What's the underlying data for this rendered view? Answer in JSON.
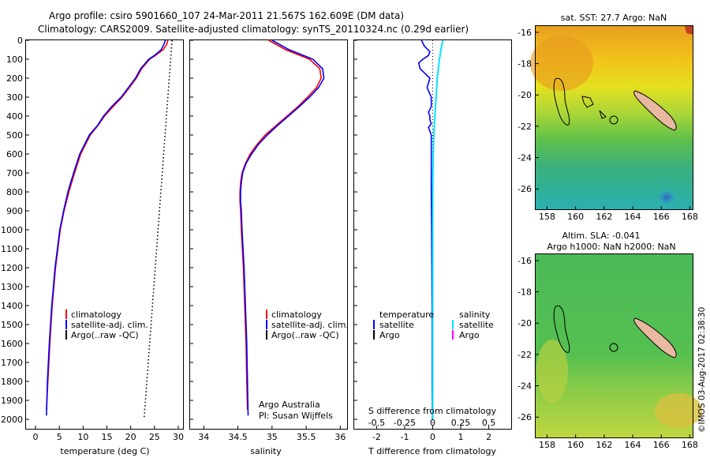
{
  "header": {
    "line1": "Argo profile: csiro 5901660_107 24-Mar-2011 21.567S 162.609E (DM data)",
    "line2": "Climatology: CARS2009. Satellite-adjusted climatology: synTS_20110324.nc (0.29d earlier)"
  },
  "colors": {
    "climatology": "#ff0000",
    "satellite": "#0000ff",
    "argo": "#000000",
    "sal_satellite": "#00e5ff",
    "sal_argo": "#ff00ff",
    "land": "#e8b9a0"
  },
  "chart_data": [
    {
      "id": "temperature",
      "type": "line",
      "xlabel": "temperature (deg C)",
      "ylabel": "",
      "xlim": [
        -2,
        31
      ],
      "ylim": [
        2050,
        0
      ],
      "xticks": [
        "0",
        "5",
        "10",
        "15",
        "20",
        "25",
        "30"
      ],
      "xtick_values": [
        0,
        5,
        10,
        15,
        20,
        25,
        30
      ],
      "yticks": [
        "0",
        "100",
        "200",
        "300",
        "400",
        "500",
        "600",
        "700",
        "800",
        "900",
        "1000",
        "1100",
        "1200",
        "1300",
        "1400",
        "1500",
        "1600",
        "1700",
        "1800",
        "1900",
        "2000"
      ],
      "ytick_values": [
        0,
        100,
        200,
        300,
        400,
        500,
        600,
        700,
        800,
        900,
        1000,
        1100,
        1200,
        1300,
        1400,
        1500,
        1600,
        1700,
        1800,
        1900,
        2000
      ],
      "legend": [
        "climatology",
        "satellite-adj. clim.",
        "Argo(..raw -QC)"
      ],
      "series": [
        {
          "name": "climatology",
          "depth": [
            0,
            20,
            50,
            80,
            100,
            150,
            200,
            250,
            300,
            350,
            400,
            450,
            500,
            600,
            700,
            800,
            900,
            1000,
            1200,
            1400,
            1600,
            1800,
            1950
          ],
          "values": [
            27.8,
            27.6,
            26.8,
            25.2,
            24.0,
            22.3,
            21.2,
            19.7,
            18.2,
            16.3,
            14.5,
            13.1,
            11.5,
            9.5,
            8.2,
            7.0,
            6.0,
            5.2,
            4.2,
            3.5,
            3.0,
            2.6,
            2.3
          ]
        },
        {
          "name": "satellite-adj. clim.",
          "depth": [
            0,
            20,
            50,
            80,
            100,
            150,
            200,
            250,
            300,
            350,
            400,
            450,
            500,
            600,
            700,
            800,
            900,
            1000,
            1200,
            1400,
            1600,
            1800,
            1980
          ],
          "values": [
            27.3,
            27.0,
            26.4,
            25.0,
            23.8,
            22.1,
            21.0,
            19.5,
            18.0,
            16.0,
            14.3,
            13.0,
            11.3,
            9.3,
            8.0,
            6.8,
            5.9,
            5.1,
            4.1,
            3.4,
            2.9,
            2.5,
            2.3
          ]
        },
        {
          "name": "Argo(..raw -QC)",
          "depth": [
            0,
            2000
          ],
          "values": [
            28.7,
            22.8
          ]
        }
      ]
    },
    {
      "id": "salinity",
      "type": "line",
      "xlabel": "salinity",
      "ylabel": "",
      "xlim": [
        33.8,
        36.1
      ],
      "ylim": [
        2050,
        0
      ],
      "xticks": [
        "34",
        "34.5",
        "35",
        "35.5",
        "36"
      ],
      "xtick_values": [
        34,
        34.5,
        35,
        35.5,
        36
      ],
      "legend": [
        "climatology",
        "satellite-adj. clim.",
        "Argo(..raw -QC)"
      ],
      "annotation": [
        "Argo Australia",
        "PI: Susan Wijffels"
      ],
      "series": [
        {
          "name": "climatology",
          "depth": [
            0,
            50,
            100,
            150,
            200,
            250,
            300,
            350,
            400,
            450,
            500,
            550,
            600,
            650,
            700,
            750,
            800,
            850,
            900,
            1000,
            1200,
            1400,
            1600,
            1800,
            1950
          ],
          "values": [
            34.95,
            35.2,
            35.55,
            35.7,
            35.72,
            35.65,
            35.52,
            35.38,
            35.22,
            35.06,
            34.9,
            34.78,
            34.68,
            34.61,
            34.56,
            34.54,
            34.53,
            34.53,
            34.54,
            34.55,
            34.58,
            34.6,
            34.62,
            34.63,
            34.64
          ]
        },
        {
          "name": "satellite-adj. clim.",
          "depth": [
            0,
            50,
            100,
            150,
            200,
            250,
            300,
            350,
            400,
            450,
            500,
            550,
            600,
            650,
            700,
            750,
            800,
            850,
            900,
            1000,
            1200,
            1400,
            1600,
            1800,
            1980
          ],
          "values": [
            35.0,
            35.25,
            35.6,
            35.74,
            35.76,
            35.68,
            35.55,
            35.4,
            35.24,
            35.08,
            34.93,
            34.8,
            34.7,
            34.62,
            34.57,
            34.55,
            34.54,
            34.54,
            34.55,
            34.56,
            34.59,
            34.61,
            34.63,
            34.64,
            34.65
          ]
        }
      ]
    },
    {
      "id": "difference",
      "type": "line",
      "xlabel": "T difference from climatology",
      "xlabel_top": "S difference from climatology",
      "xlim": [
        -2.8,
        2.8
      ],
      "ylim": [
        2050,
        0
      ],
      "xticks": [
        "-2",
        "-1",
        "0",
        "1",
        "2"
      ],
      "xtick_values": [
        -2,
        -1,
        0,
        1,
        2
      ],
      "sticks": [
        "-0.5",
        "-0.25",
        "0",
        "0.25",
        "0.5"
      ],
      "stick_values": [
        -0.5,
        -0.25,
        0,
        0.25,
        0.5
      ],
      "legend_temperature": {
        "title": "temperature",
        "items": [
          "satellite",
          "Argo"
        ]
      },
      "legend_salinity": {
        "title": "salinity",
        "items": [
          "satellite",
          "Argo"
        ]
      },
      "series": [
        {
          "name": "satellite",
          "group": "temperature",
          "depth": [
            0,
            30,
            60,
            80,
            100,
            120,
            150,
            200,
            250,
            300,
            350,
            380,
            400,
            420,
            440,
            460,
            500,
            600,
            700,
            800,
            1000,
            1200,
            1500,
            1800,
            2000
          ],
          "values": [
            -0.4,
            -0.3,
            -0.1,
            -0.15,
            -0.35,
            -0.5,
            -0.45,
            -0.1,
            -0.2,
            -0.05,
            -0.05,
            -0.15,
            -0.1,
            -0.1,
            -0.05,
            -0.15,
            -0.05,
            -0.05,
            -0.05,
            -0.05,
            -0.04,
            -0.03,
            -0.02,
            -0.02,
            -0.01
          ]
        },
        {
          "name": "satellite",
          "group": "salinity",
          "depth": [
            0,
            30,
            60,
            100,
            150,
            200,
            300,
            400,
            500,
            600,
            800,
            1000,
            1200,
            1500,
            1800,
            2000
          ],
          "values": [
            0.09,
            0.08,
            0.07,
            0.06,
            0.05,
            0.04,
            0.03,
            0.02,
            0.01,
            0.005,
            0.0,
            0.0,
            0.0,
            0.0,
            0.0,
            0.0
          ]
        }
      ]
    }
  ],
  "maps": {
    "sst": {
      "title": "sat. SST: 27.7 Argo: NaN"
    },
    "sla": {
      "title1": "Altim. SLA: -0.041",
      "title2": "Argo h1000: NaN h2000: NaN"
    },
    "xticks": [
      "158",
      "160",
      "162",
      "164",
      "166",
      "168"
    ],
    "xtick_values": [
      158,
      160,
      162,
      164,
      166,
      168
    ],
    "yticks": [
      "-16",
      "-18",
      "-20",
      "-22",
      "-24",
      "-26"
    ],
    "ytick_values": [
      -16,
      -18,
      -20,
      -22,
      -24,
      -26
    ]
  },
  "watermark": "©IMOS 03-Aug-2017 02:38:30"
}
